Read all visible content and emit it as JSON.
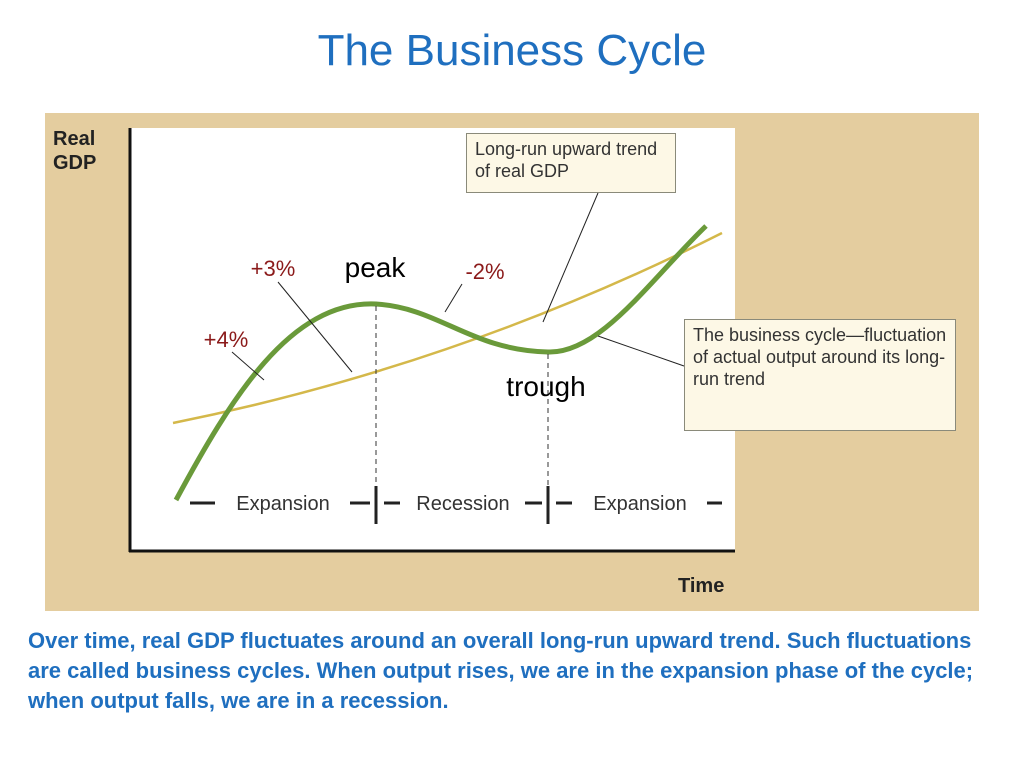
{
  "title": "The Business Cycle",
  "diagram": {
    "y_axis_label": "Real GDP",
    "x_axis_label": "Time",
    "annotations": [
      "+3%",
      "peak",
      "-2%",
      "+4%",
      "trough"
    ],
    "phases": [
      "Expansion",
      "Recession",
      "Expansion"
    ],
    "callouts": [
      "Long-run upward trend of real GDP",
      "The business cycle—fluctuation of actual output around its long-run trend"
    ]
  },
  "caption": "Over time, real GDP fluctuates around an overall long-run upward trend. Such fluctuations are called business cycles. When output rises, we are in the expansion phase of the cycle; when output falls, we are in a recession."
}
